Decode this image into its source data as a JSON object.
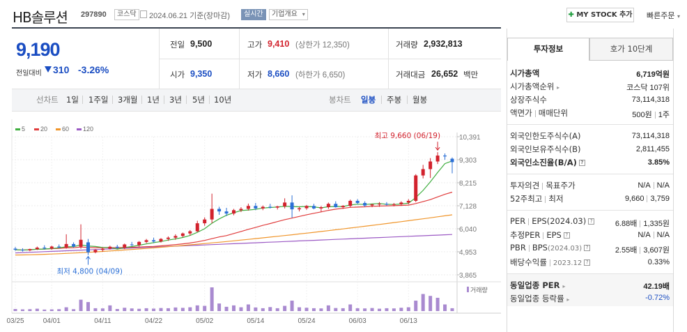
{
  "header": {
    "title": "HB솔루션",
    "code": "297890",
    "market_tag": "코스닥",
    "date": "2024.06.21 기준(장마감)",
    "realtime_tag": "실시간",
    "company_tag": "기업개요",
    "mystock_label": "MY STOCK 추가",
    "quick_order": "빠른주문"
  },
  "price": {
    "current": "9,190",
    "change_label": "전일대비",
    "change_value": "310",
    "change_pct": "-3.26%",
    "arrow": "down"
  },
  "stats": {
    "prev_label": "전일",
    "prev": "9,500",
    "high_label": "고가",
    "high": "9,410",
    "high_limit": "(상한가 12,350)",
    "volume_label": "거래량",
    "volume": "2,932,813",
    "open_label": "시가",
    "open": "9,350",
    "low_label": "저가",
    "low": "8,660",
    "low_limit": "(하한가 6,650)",
    "amount_label": "거래대금",
    "amount": "26,652",
    "amount_unit": "백만"
  },
  "periods": {
    "line_label": "선차트",
    "items": [
      "1일",
      "1주일",
      "3개월",
      "1년",
      "3년",
      "5년",
      "10년"
    ],
    "candle_label": "봉차트",
    "candle_items": [
      "일봉",
      "주봉",
      "월봉"
    ],
    "candle_active": "일봉"
  },
  "chart_data": {
    "type": "candlestick",
    "ma_legend": [
      {
        "name": "5",
        "color": "#3fae3f"
      },
      {
        "name": "20",
        "color": "#e03b3b"
      },
      {
        "name": "60",
        "color": "#f0952a"
      },
      {
        "name": "120",
        "color": "#9b59c4"
      }
    ],
    "y_ticks": [
      "10,391",
      "9,303",
      "8,215",
      "7,128",
      "6,040",
      "4,953",
      "3,865"
    ],
    "ylim": [
      3865,
      10391
    ],
    "x_tick_labels": [
      "03/25",
      "04/01",
      "04/11",
      "04/22",
      "05/02",
      "05/14",
      "05/24",
      "06/03",
      "06/13"
    ],
    "x_tick_index": [
      0,
      5,
      12,
      19,
      26,
      33,
      40,
      47,
      54
    ],
    "high_annot": "최고 9,660 (06/19)",
    "high_index": 58,
    "low_annot": "최저 4,800 (04/09)",
    "low_index": 10,
    "volume_label": "거래량",
    "candles": [
      [
        5100,
        5180,
        5000,
        5050
      ],
      [
        5050,
        5120,
        4960,
        5020
      ],
      [
        5020,
        5100,
        4980,
        5080
      ],
      [
        5080,
        5200,
        5040,
        5150
      ],
      [
        5150,
        5260,
        5060,
        5110
      ],
      [
        5110,
        5240,
        5050,
        5200
      ],
      [
        5200,
        5300,
        5120,
        5160
      ],
      [
        5160,
        5780,
        5100,
        5320
      ],
      [
        5320,
        5400,
        5150,
        5200
      ],
      [
        5200,
        6250,
        5100,
        5520
      ],
      [
        5400,
        5560,
        4800,
        4930
      ],
      [
        4930,
        5080,
        4880,
        5040
      ],
      [
        5040,
        5160,
        4960,
        5100
      ],
      [
        5100,
        5240,
        5060,
        5190
      ],
      [
        5190,
        5280,
        5100,
        5140
      ],
      [
        5140,
        5340,
        5080,
        5300
      ],
      [
        5300,
        5420,
        5220,
        5270
      ],
      [
        5270,
        5460,
        5200,
        5420
      ],
      [
        5420,
        5560,
        5360,
        5500
      ],
      [
        5500,
        5620,
        5380,
        5440
      ],
      [
        5440,
        5600,
        5390,
        5560
      ],
      [
        5560,
        5680,
        5470,
        5620
      ],
      [
        5620,
        5780,
        5520,
        5700
      ],
      [
        5700,
        5860,
        5640,
        5820
      ],
      [
        5820,
        5980,
        5720,
        5920
      ],
      [
        5920,
        6420,
        5880,
        6300
      ],
      [
        6300,
        6580,
        6180,
        6480
      ],
      [
        6480,
        7700,
        6300,
        6980
      ],
      [
        6980,
        7080,
        6700,
        6860
      ],
      [
        6860,
        7030,
        6640,
        6760
      ],
      [
        6760,
        6980,
        6680,
        6920
      ],
      [
        6920,
        7060,
        6830,
        6980
      ],
      [
        6980,
        7230,
        6900,
        7120
      ],
      [
        7120,
        7260,
        6920,
        7000
      ],
      [
        7000,
        7140,
        6920,
        7080
      ],
      [
        7080,
        7220,
        7000,
        7040
      ],
      [
        7040,
        7120,
        6950,
        7100
      ],
      [
        7100,
        7480,
        7000,
        7280
      ],
      [
        7280,
        7620,
        6560,
        6960
      ],
      [
        6960,
        7080,
        6860,
        7010
      ],
      [
        7010,
        7160,
        6940,
        7120
      ],
      [
        7120,
        7220,
        6960,
        7000
      ],
      [
        7000,
        7120,
        6840,
        7060
      ],
      [
        7060,
        7280,
        6980,
        7220
      ],
      [
        7220,
        7340,
        7040,
        7060
      ],
      [
        7060,
        7160,
        6980,
        7120
      ],
      [
        7120,
        7420,
        7060,
        7360
      ],
      [
        7360,
        7440,
        7200,
        7260
      ],
      [
        7260,
        7340,
        7080,
        7140
      ],
      [
        7140,
        7220,
        7060,
        7190
      ],
      [
        7190,
        7300,
        7080,
        7220
      ],
      [
        7220,
        7300,
        7140,
        7180
      ],
      [
        7180,
        7260,
        7100,
        7200
      ],
      [
        7200,
        7340,
        7120,
        7280
      ],
      [
        7280,
        7440,
        7200,
        7360
      ],
      [
        7360,
        8620,
        7300,
        8560
      ],
      [
        8560,
        9060,
        8420,
        8860
      ],
      [
        8860,
        9380,
        8440,
        9220
      ],
      [
        9220,
        9660,
        9100,
        9500
      ],
      [
        9500,
        9600,
        9300,
        9460
      ],
      [
        9350,
        9410,
        8660,
        9190
      ]
    ],
    "volumes": [
      22,
      18,
      20,
      25,
      16,
      18,
      20,
      40,
      20,
      120,
      95,
      30,
      28,
      60,
      22,
      35,
      28,
      24,
      30,
      26,
      32,
      30,
      38,
      34,
      40,
      60,
      55,
      250,
      80,
      45,
      60,
      40,
      70,
      38,
      30,
      42,
      30,
      55,
      110,
      40,
      35,
      30,
      28,
      60,
      32,
      30,
      70,
      30,
      28,
      32,
      25,
      30,
      28,
      35,
      40,
      110,
      180,
      160,
      140,
      70,
      30
    ]
  },
  "sidebar": {
    "tab_info": "투자정보",
    "tab_hoga": "호가 10단계",
    "market_cap_label": "시가총액",
    "market_cap": "6,719억원",
    "rank_label": "시가총액순위",
    "rank": "코스닥 107위",
    "shares_label": "상장주식수",
    "shares": "73,114,318",
    "par_label": "액면가",
    "trade_unit_label": "매매단위",
    "par_value": "500원",
    "trade_unit": "1주",
    "foreign_limit_label": "외국인한도주식수(A)",
    "foreign_limit": "73,114,318",
    "foreign_hold_label": "외국인보유주식수(B)",
    "foreign_hold": "2,811,455",
    "foreign_ratio_label": "외국인소진율(B/A)",
    "foreign_ratio": "3.85%",
    "opinion_label": "투자의견",
    "target_label": "목표주가",
    "opinion": "N/A",
    "target": "N/A",
    "week52_label": "52주최고",
    "week52_low_label": "최저",
    "week52_high": "9,660",
    "week52_low": "3,759",
    "per_label": "PER",
    "eps_label": "EPS(2024.03)",
    "per": "6.88배",
    "eps": "1,335원",
    "est_per_label": "추정PER",
    "est_eps_label": "EPS",
    "est_per": "N/A",
    "est_eps": "N/A",
    "pbr_label": "PBR",
    "bps_label": "BPS",
    "bps_date": "(2024.03)",
    "pbr": "2.55배",
    "bps": "3,607원",
    "div_label": "배당수익률",
    "div_date": "2023.12",
    "div": "0.33%",
    "ind_per_label": "동일업종 PER",
    "ind_per": "42.19배",
    "ind_rate_label": "동일업종 등락률",
    "ind_rate": "-0.72%"
  }
}
